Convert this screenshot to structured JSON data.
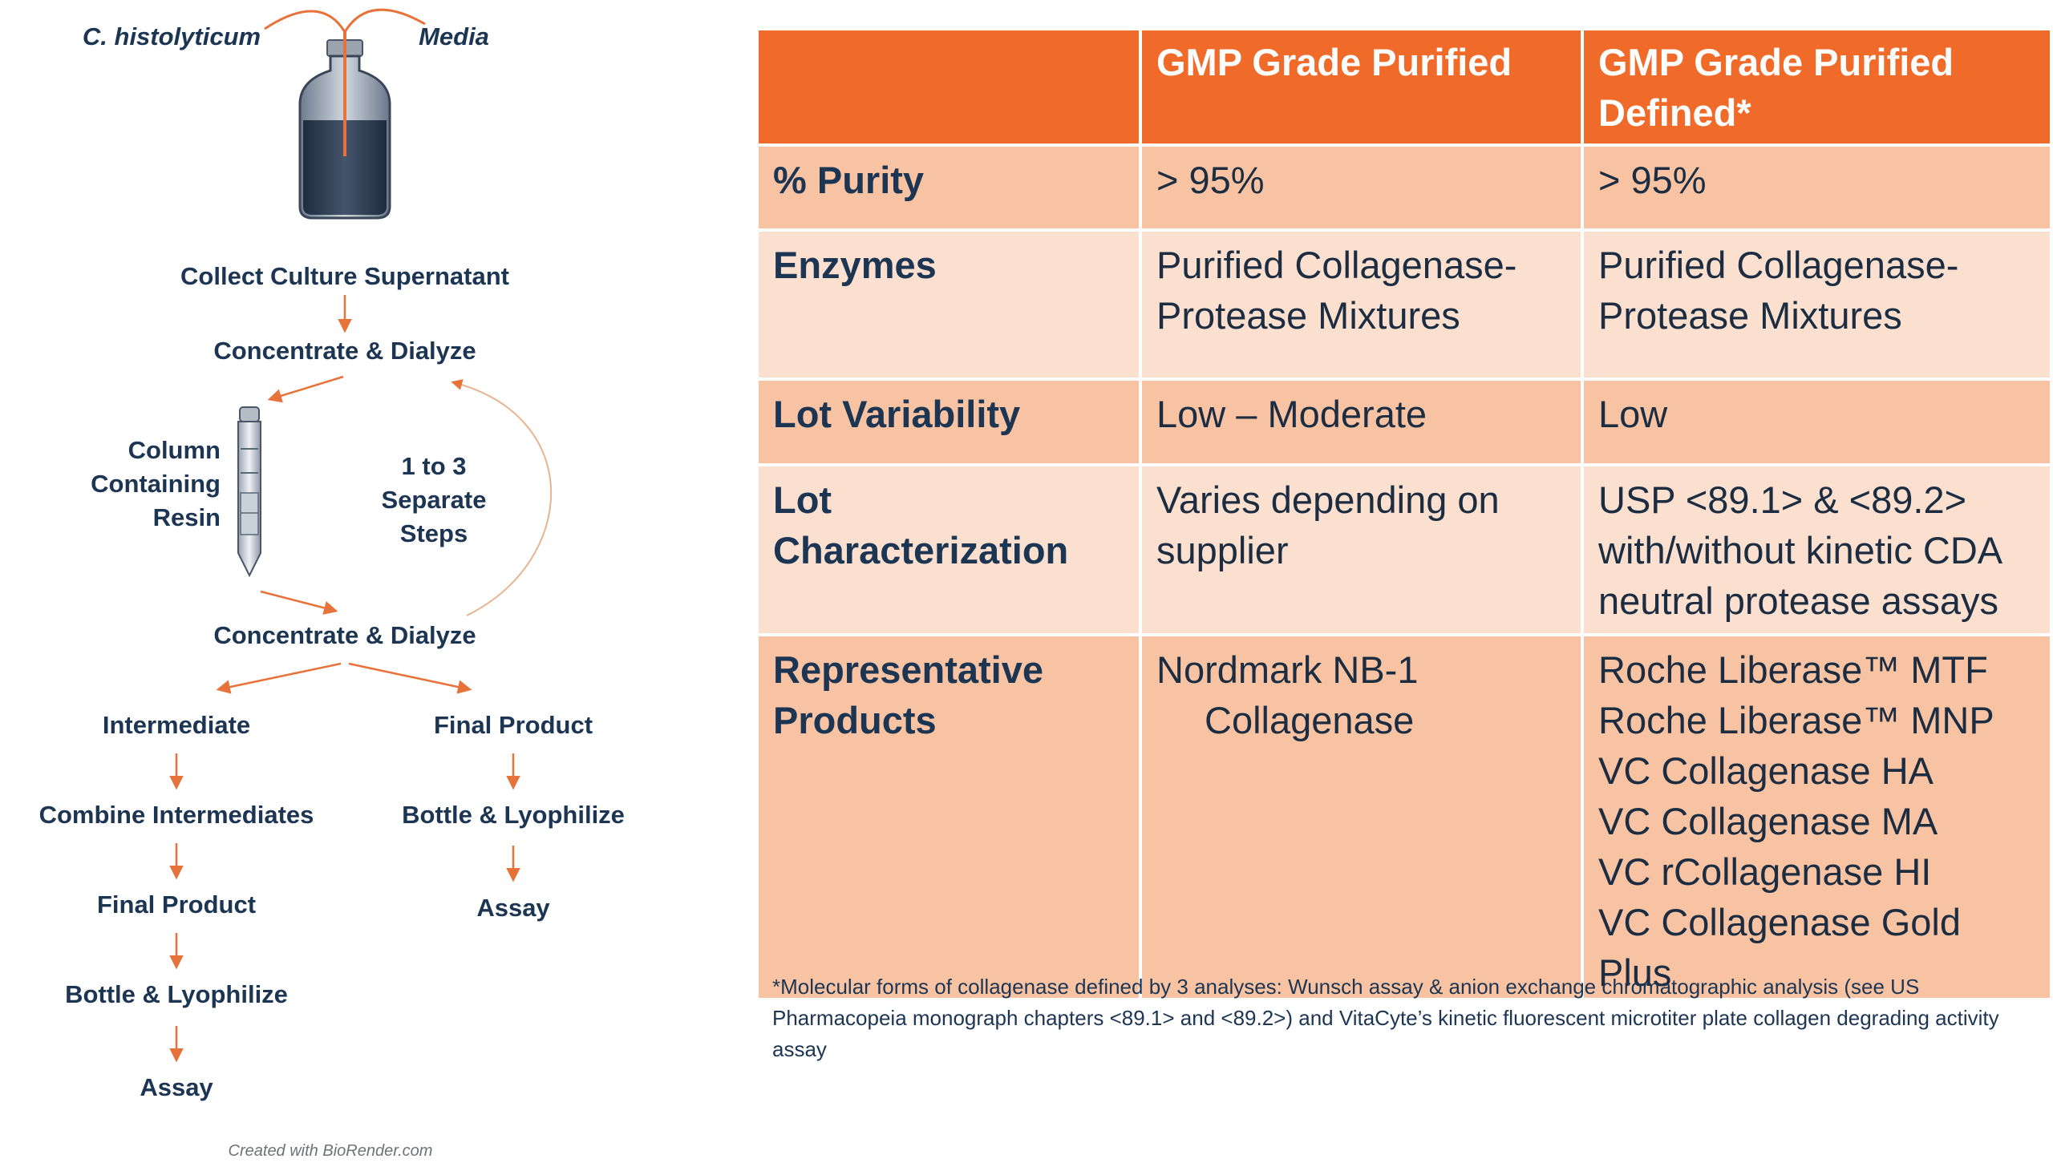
{
  "workflow": {
    "source_left": "C. histolyticum",
    "source_right": "Media",
    "collect": "Collect Culture Supernatant",
    "concentrate_1": "Concentrate & Dialyze",
    "column_label": "Column\nContaining\nResin",
    "repeat_label": "1 to 3\nSeparate\nSteps",
    "concentrate_2": "Concentrate & Dialyze",
    "left_branch": [
      "Intermediate",
      "Combine Intermediates",
      "Final Product",
      "Bottle & Lyophilize",
      "Assay"
    ],
    "right_branch": [
      "Final Product",
      "Bottle & Lyophilize",
      "Assay"
    ],
    "credit": "Created with BioRender.com",
    "colors": {
      "arrow": "#e8733a",
      "bottle": "#2e3e55",
      "text": "#1c3553"
    }
  },
  "table": {
    "headers": [
      "",
      "GMP Grade Purified",
      "GMP Grade Purified Defined*"
    ],
    "rows": [
      {
        "label": "% Purity",
        "purified": [
          "> 95%"
        ],
        "defined": [
          "> 95%"
        ]
      },
      {
        "label": "Enzymes",
        "purified": [
          "Purified Collagenase-",
          "Protease Mixtures"
        ],
        "defined": [
          "Purified Collagenase-",
          "Protease Mixtures"
        ]
      },
      {
        "label": "Lot Variability",
        "purified": [
          "Low – Moderate"
        ],
        "defined": [
          "Low"
        ]
      },
      {
        "label": "Lot Characterization",
        "purified": [
          "Varies depending on",
          "supplier"
        ],
        "defined": [
          "USP <89.1> & <89.2>",
          "with/without kinetic CDA",
          "neutral protease assays"
        ]
      },
      {
        "label": "Representative Products",
        "purified": [
          "Nordmark NB-1",
          "Collagenase"
        ],
        "defined": [
          "Roche Liberase™ MTF",
          "Roche Liberase™ MNP",
          "VC Collagenase HA",
          "VC Collagenase MA",
          "VC rCollagenase HI",
          "VC Collagenase Gold Plus"
        ]
      }
    ],
    "colors": {
      "header": "#f06b2a",
      "row_dark": "#f8c3a3",
      "row_light": "#fbdfcf"
    }
  },
  "footnote": "*Molecular forms of collagenase defined by 3 analyses: Wunsch assay & anion exchange chromatographic analysis (see US Pharmacopeia monograph chapters <89.1> and <89.2>) and VitaCyte’s kinetic fluorescent microtiter plate collagen degrading activity assay"
}
